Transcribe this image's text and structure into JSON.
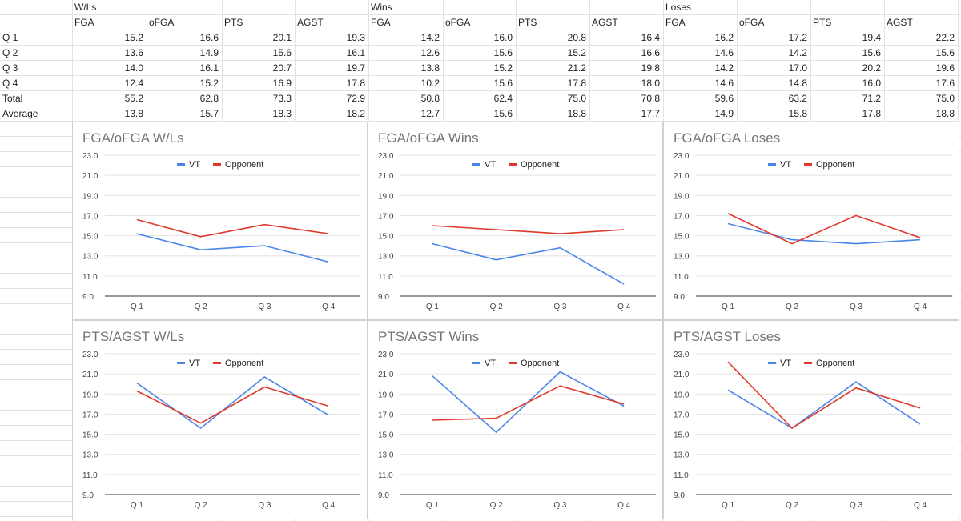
{
  "table": {
    "group_headers": [
      "W/Ls",
      "Wins",
      "Loses"
    ],
    "column_headers": [
      "FGA",
      "oFGA",
      "PTS",
      "AGST",
      "FGA",
      "oFGA",
      "PTS",
      "AGST",
      "FGA",
      "oFGA",
      "PTS",
      "AGST"
    ],
    "rows": [
      {
        "label": "Q 1",
        "values": [
          "15.2",
          "16.6",
          "20.1",
          "19.3",
          "14.2",
          "16.0",
          "20.8",
          "16.4",
          "16.2",
          "17.2",
          "19.4",
          "22.2"
        ]
      },
      {
        "label": "Q 2",
        "values": [
          "13.6",
          "14.9",
          "15.6",
          "16.1",
          "12.6",
          "15.6",
          "15.2",
          "16.6",
          "14.6",
          "14.2",
          "15.6",
          "15.6"
        ]
      },
      {
        "label": "Q 3",
        "values": [
          "14.0",
          "16.1",
          "20.7",
          "19.7",
          "13.8",
          "15.2",
          "21.2",
          "19.8",
          "14.2",
          "17.0",
          "20.2",
          "19.6"
        ]
      },
      {
        "label": "Q 4",
        "values": [
          "12.4",
          "15.2",
          "16.9",
          "17.8",
          "10.2",
          "15.6",
          "17.8",
          "18.0",
          "14.6",
          "14.8",
          "16.0",
          "17.6"
        ]
      },
      {
        "label": "Total",
        "values": [
          "55.2",
          "62.8",
          "73.3",
          "72.9",
          "50.8",
          "62.4",
          "75.0",
          "70.8",
          "59.6",
          "63.2",
          "71.2",
          "75.0"
        ]
      },
      {
        "label": "Average",
        "values": [
          "13.8",
          "15.7",
          "18.3",
          "18.2",
          "12.7",
          "15.6",
          "18.8",
          "17.7",
          "14.9",
          "15.8",
          "17.8",
          "18.8"
        ]
      }
    ]
  },
  "colors": {
    "vt": "#4a86e8",
    "opponent": "#e0392b"
  },
  "chart_data": [
    {
      "type": "line",
      "title": "FGA/oFGA W/Ls",
      "categories": [
        "Q 1",
        "Q 2",
        "Q 3",
        "Q 4"
      ],
      "series": [
        {
          "name": "VT",
          "values": [
            15.2,
            13.6,
            14.0,
            12.4
          ]
        },
        {
          "name": "Opponent",
          "values": [
            16.6,
            14.9,
            16.1,
            15.2
          ]
        }
      ],
      "yticks": [
        "23.0",
        "21.0",
        "19.0",
        "17.0",
        "15.0",
        "13.0",
        "11.0",
        "9.0"
      ],
      "ylim": [
        9,
        23
      ],
      "legend": "top-center",
      "grid": true
    },
    {
      "type": "line",
      "title": "FGA/oFGA Wins",
      "categories": [
        "Q 1",
        "Q 2",
        "Q 3",
        "Q 4"
      ],
      "series": [
        {
          "name": "VT",
          "values": [
            14.2,
            12.6,
            13.8,
            10.2
          ]
        },
        {
          "name": "Opponent",
          "values": [
            16.0,
            15.6,
            15.2,
            15.6
          ]
        }
      ],
      "yticks": [
        "23.0",
        "21.0",
        "19.0",
        "17.0",
        "15.0",
        "13.0",
        "11.0",
        "9.0"
      ],
      "ylim": [
        9,
        23
      ],
      "legend": "top-center",
      "grid": true
    },
    {
      "type": "line",
      "title": "FGA/oFGA Loses",
      "categories": [
        "Q 1",
        "Q 2",
        "Q 3",
        "Q 4"
      ],
      "series": [
        {
          "name": "VT",
          "values": [
            16.2,
            14.6,
            14.2,
            14.6
          ]
        },
        {
          "name": "Opponent",
          "values": [
            17.2,
            14.2,
            17.0,
            14.8
          ]
        }
      ],
      "yticks": [
        "23.0",
        "21.0",
        "19.0",
        "17.0",
        "15.0",
        "13.0",
        "11.0",
        "9.0"
      ],
      "ylim": [
        9,
        23
      ],
      "legend": "top-center",
      "grid": true
    },
    {
      "type": "line",
      "title": "PTS/AGST W/Ls",
      "categories": [
        "Q 1",
        "Q 2",
        "Q 3",
        "Q 4"
      ],
      "series": [
        {
          "name": "VT",
          "values": [
            20.1,
            15.6,
            20.7,
            16.9
          ]
        },
        {
          "name": "Opponent",
          "values": [
            19.3,
            16.1,
            19.7,
            17.8
          ]
        }
      ],
      "yticks": [
        "23.0",
        "21.0",
        "19.0",
        "17.0",
        "15.0",
        "13.0",
        "11.0",
        "9.0"
      ],
      "ylim": [
        9,
        23
      ],
      "legend": "top-center",
      "grid": true
    },
    {
      "type": "line",
      "title": "PTS/AGST Wins",
      "categories": [
        "Q 1",
        "Q 2",
        "Q 3",
        "Q 4"
      ],
      "series": [
        {
          "name": "VT",
          "values": [
            20.8,
            15.2,
            21.2,
            17.8
          ]
        },
        {
          "name": "Opponent",
          "values": [
            16.4,
            16.6,
            19.8,
            18.0
          ]
        }
      ],
      "yticks": [
        "23.0",
        "21.0",
        "19.0",
        "17.0",
        "15.0",
        "13.0",
        "11.0",
        "9.0"
      ],
      "ylim": [
        9,
        23
      ],
      "legend": "top-center",
      "grid": true
    },
    {
      "type": "line",
      "title": "PTS/AGST Loses",
      "categories": [
        "Q 1",
        "Q 2",
        "Q 3",
        "Q 4"
      ],
      "series": [
        {
          "name": "VT",
          "values": [
            19.4,
            15.6,
            20.2,
            16.0
          ]
        },
        {
          "name": "Opponent",
          "values": [
            22.2,
            15.6,
            19.6,
            17.6
          ]
        }
      ],
      "yticks": [
        "23.0",
        "21.0",
        "19.0",
        "17.0",
        "15.0",
        "13.0",
        "11.0",
        "9.0"
      ],
      "ylim": [
        9,
        23
      ],
      "legend": "top-center",
      "grid": true
    }
  ]
}
